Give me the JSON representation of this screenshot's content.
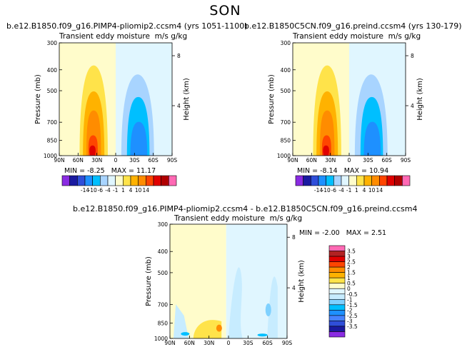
{
  "page": {
    "season": "SON"
  },
  "colors": {
    "levels": [
      -14,
      -10,
      -6,
      -4,
      -1,
      1,
      4,
      10,
      14
    ],
    "fills": [
      "#8a2be2",
      "#1a1aa0",
      "#2f4ed9",
      "#1e90ff",
      "#00bfff",
      "#a8d4ff",
      "#e0f6ff",
      "#fffccb",
      "#ffe34a",
      "#ffb200",
      "#ff8c00",
      "#ff4500",
      "#e00000",
      "#b00000",
      "#ff69b4"
    ],
    "diff_levels": [
      -3.5,
      -3,
      -2.5,
      -2,
      -1.5,
      -1,
      -0.5,
      0,
      0.5,
      1,
      1.5,
      2,
      2.5,
      3,
      3.5
    ],
    "diff_fills": [
      "#8a2be2",
      "#1a1aa0",
      "#2f4ed9",
      "#4682ff",
      "#1e90ff",
      "#00bfff",
      "#7fd1ff",
      "#c7ecff",
      "#e0f6ff",
      "#fffccb",
      "#ffe34a",
      "#ffb200",
      "#ff8c00",
      "#ff4500",
      "#e00000",
      "#b22222",
      "#ff69b4"
    ]
  },
  "panels": [
    {
      "title": "b.e12.B1850.f09_g16.PIMP4-pliomip2.ccsm4 (yrs 1051-1100)",
      "subtitle_left": "Transient eddy moisture",
      "subtitle_right": "m/s g/kg",
      "min_label": "MIN = -8.25",
      "max_label": "MAX = 11.17",
      "chart_data": {
        "type": "contour",
        "field": "transient eddy meridional moisture flux",
        "units": "m/s g/kg",
        "x_ticks": [
          "90N",
          "60N",
          "30N",
          "0",
          "30S",
          "60S",
          "90S"
        ],
        "y_ticks": [
          300,
          400,
          500,
          700,
          850,
          1000
        ],
        "y2_ticks": [
          8,
          4
        ],
        "xlabel": "",
        "ylabel": "Pressure (mb)",
        "y2label": "Height (km)",
        "ylim": [
          1000,
          300
        ],
        "min": -8.25,
        "max": 11.17,
        "colorbar_ticks": [
          "-14",
          "-10",
          "-6",
          "-4",
          "-1",
          "1",
          "4",
          "10",
          "14"
        ]
      }
    },
    {
      "title": "b.e12.B1850C5CN.f09_g16.preind.ccsm4 (yrs 130-179)",
      "subtitle_left": "Transient eddy moisture",
      "subtitle_right": "m/s g/kg",
      "min_label": "MIN = -8.14",
      "max_label": "MAX = 10.94",
      "chart_data": {
        "type": "contour",
        "field": "transient eddy meridional moisture flux",
        "units": "m/s g/kg",
        "x_ticks": [
          "90N",
          "60N",
          "30N",
          "0",
          "30S",
          "60S",
          "90S"
        ],
        "y_ticks": [
          300,
          400,
          500,
          700,
          850,
          1000
        ],
        "y2_ticks": [
          8,
          4
        ],
        "xlabel": "",
        "ylabel": "Pressure (mb)",
        "y2label": "Height (km)",
        "ylim": [
          1000,
          300
        ],
        "min": -8.14,
        "max": 10.94,
        "colorbar_ticks": [
          "-14",
          "-10",
          "-6",
          "-4",
          "-1",
          "1",
          "4",
          "10",
          "14"
        ]
      }
    },
    {
      "title": "b.e12.B1850.f09_g16.PIMP4-pliomip2.ccsm4 - b.e12.B1850C5CN.f09_g16.preind.ccsm4",
      "subtitle_left": "Transient eddy moisture",
      "subtitle_right": "m/s g/kg",
      "min_label": "MIN = -2.00",
      "max_label": "MAX = 2.51",
      "chart_data": {
        "type": "contour",
        "field": "difference of transient eddy moisture flux",
        "units": "m/s g/kg",
        "x_ticks": [
          "90N",
          "60N",
          "30N",
          "0",
          "30S",
          "60S",
          "90S"
        ],
        "y_ticks": [
          300,
          400,
          500,
          700,
          850,
          1000
        ],
        "y2_ticks": [
          8,
          4
        ],
        "xlabel": "",
        "ylabel": "Pressure (mb)",
        "y2label": "Height (km)",
        "ylim": [
          1000,
          300
        ],
        "min": -2.0,
        "max": 2.51,
        "colorbar_ticks": [
          "3.5",
          "3",
          "2.5",
          "2",
          "1.5",
          "1",
          "0.5",
          "0",
          "-0.5",
          "-1",
          "-1.5",
          "-2",
          "-2.5",
          "-3",
          "-3.5"
        ]
      }
    }
  ]
}
